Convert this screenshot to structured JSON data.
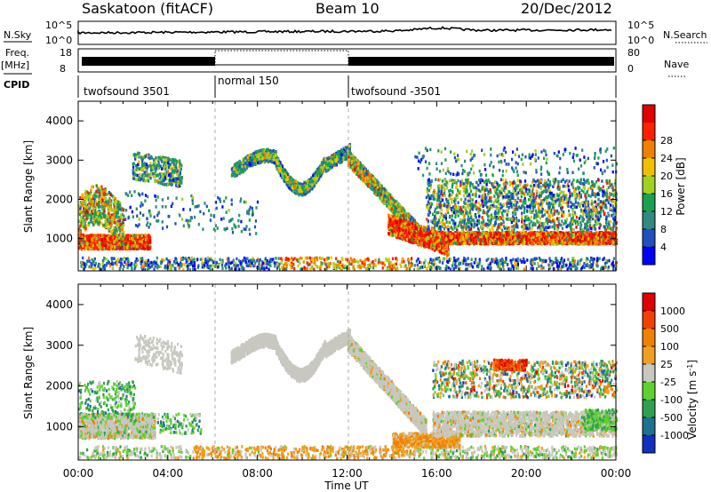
{
  "header": {
    "title": "Saskatoon (fitACF)",
    "beam": "Beam 10",
    "date": "20/Dec/2012"
  },
  "meta_panel": {
    "nsky_label": "N.Sky",
    "nsearch_label": "N.Search",
    "freq_label_top": "Freq.",
    "freq_label_unit": "[MHz]",
    "nave_label": "Nave",
    "cpid_label": "CPID",
    "nsky_ticks": [
      "10^5",
      "10^0"
    ],
    "nsearch_ticks": [
      "10^5",
      "10^0"
    ],
    "freq_ticks": [
      "18",
      "8"
    ],
    "nave_ticks": [
      "80",
      "0"
    ],
    "cpid_segments": [
      {
        "label": "twofsound 3501",
        "start_hour": 0,
        "end_hour": 6
      },
      {
        "label": "normal 150",
        "start_hour": 6,
        "end_hour": 12
      },
      {
        "label": "twofsound -3501",
        "start_hour": 12,
        "end_hour": 24
      }
    ]
  },
  "colors": {
    "power": [
      "#0000ff",
      "#2050c0",
      "#2f8a80",
      "#1aa050",
      "#a0d020",
      "#f0c000",
      "#f08000",
      "#ff2000",
      "#e00000"
    ],
    "velocity": [
      "#1030c0",
      "#207090",
      "#30a050",
      "#60d030",
      "#c8c8c0",
      "#f0a020",
      "#f08000",
      "#f04000",
      "#e00000"
    ]
  },
  "chart_data": [
    {
      "type": "heatmap",
      "quantity": "Power",
      "ylabel": "Slant Range [km]",
      "xlabel": "Time UT",
      "xlim": [
        "00:00",
        "24:00"
      ],
      "ylim": [
        180,
        4500
      ],
      "y_ticks": [
        1000,
        2000,
        3000,
        4000
      ],
      "x_ticks": [
        "00:00",
        "04:00",
        "08:00",
        "12:00",
        "16:00",
        "20:00",
        "00:00"
      ],
      "colorbar_label": "Power [dB]",
      "colorbar_ticks": [
        4,
        8,
        12,
        16,
        20,
        24,
        28
      ]
    },
    {
      "type": "heatmap",
      "quantity": "Velocity",
      "ylabel": "Slant Range [km]",
      "xlabel": "Time UT",
      "xlim": [
        "00:00",
        "24:00"
      ],
      "ylim": [
        180,
        4500
      ],
      "y_ticks": [
        1000,
        2000,
        3000,
        4000
      ],
      "x_ticks": [
        "00:00",
        "04:00",
        "08:00",
        "12:00",
        "16:00",
        "20:00",
        "00:00"
      ],
      "colorbar_label": "Velocity [m s^-1]",
      "colorbar_ticks": [
        1000,
        500,
        100,
        25,
        -25,
        -100,
        -500,
        -1000
      ]
    }
  ]
}
